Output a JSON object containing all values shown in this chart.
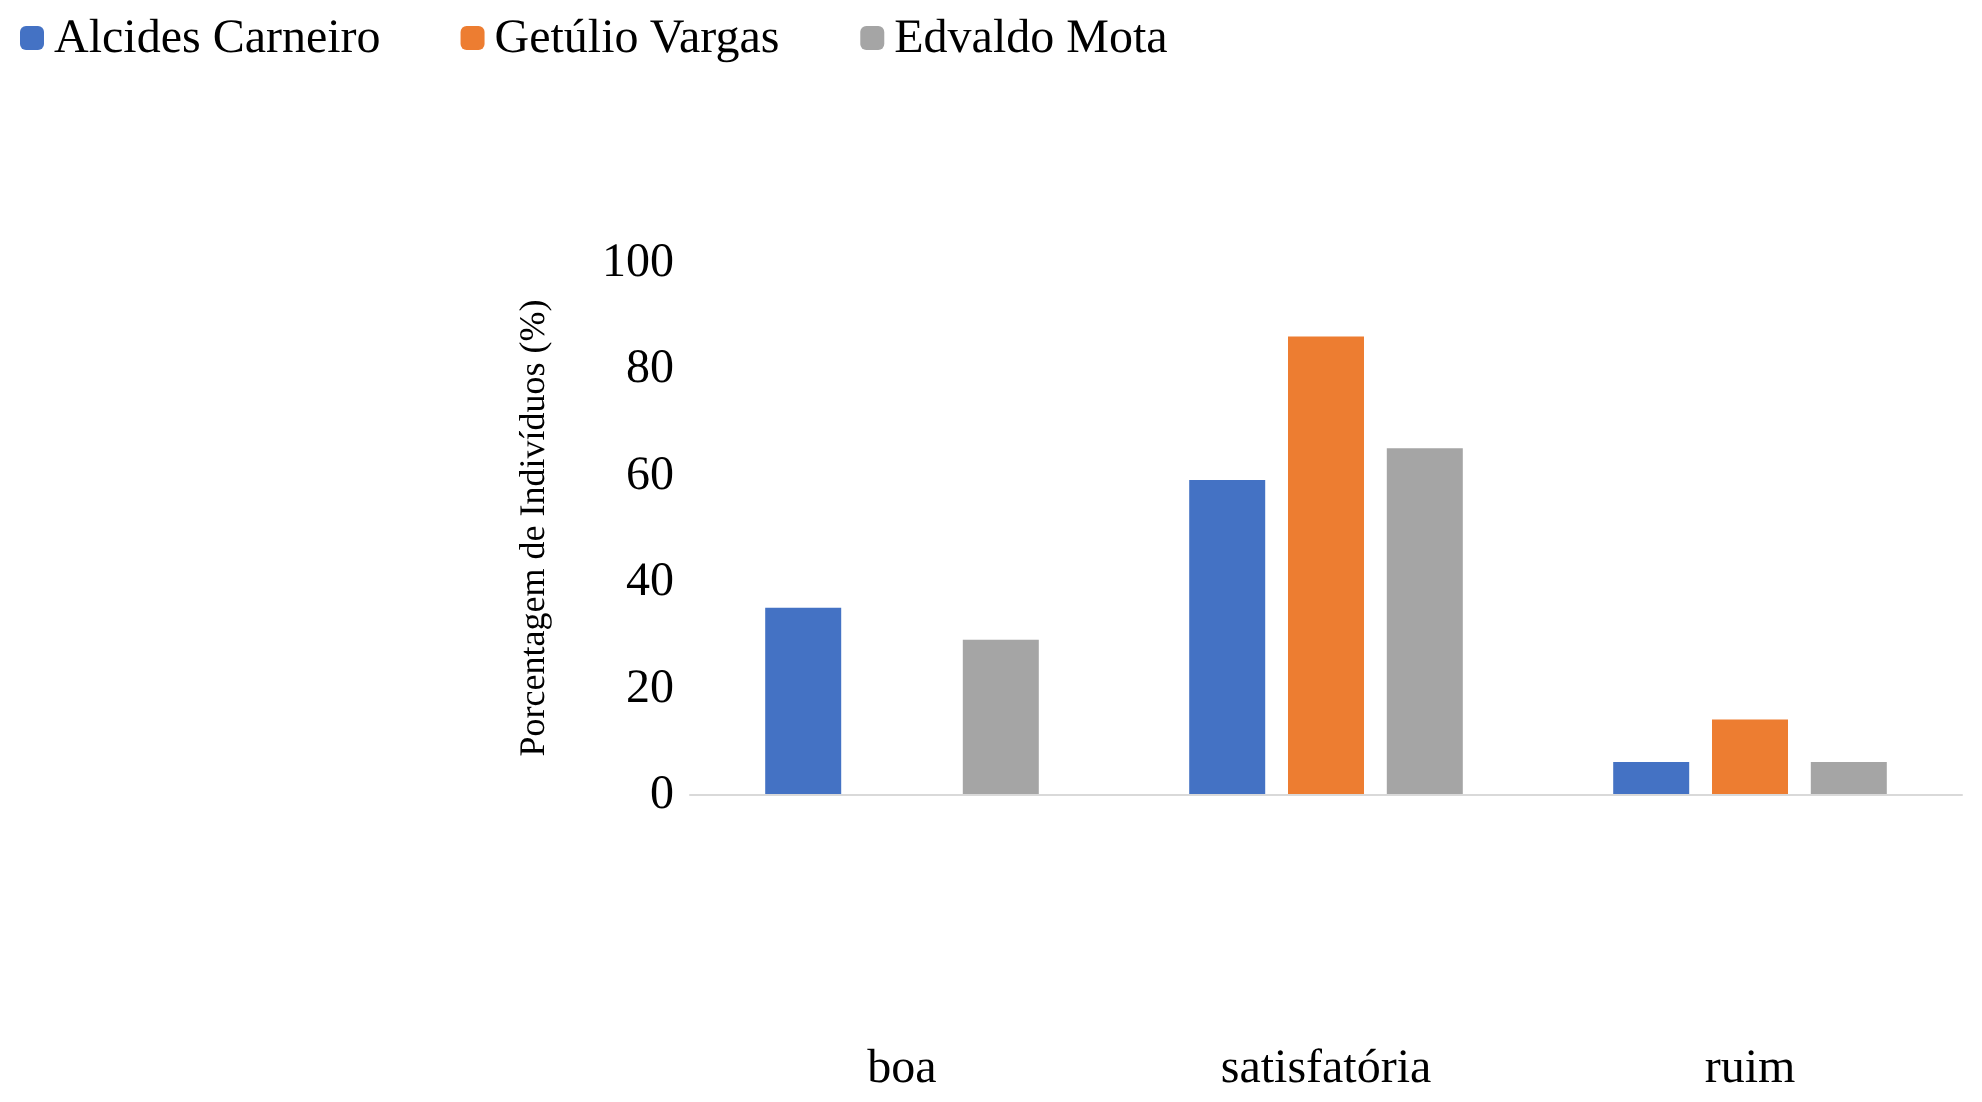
{
  "chart_data": {
    "type": "bar",
    "ylabel": "Porcentagem de Indivíduos (%)",
    "categories": [
      "boa",
      "satisfatória",
      "ruim"
    ],
    "series": [
      {
        "name": "Alcides Carneiro",
        "color": "#4472c4",
        "values": [
          35,
          59,
          6
        ]
      },
      {
        "name": "Getúlio Vargas",
        "color": "#ed7d31",
        "values": [
          0,
          86,
          14
        ]
      },
      {
        "name": "Edvaldo Mota",
        "color": "#a5a5a5",
        "values": [
          29,
          65,
          6
        ]
      }
    ],
    "ylim": [
      0,
      100
    ],
    "yticks": [
      0,
      20,
      40,
      60,
      80,
      100
    ],
    "grid": false,
    "legend": "top left"
  }
}
